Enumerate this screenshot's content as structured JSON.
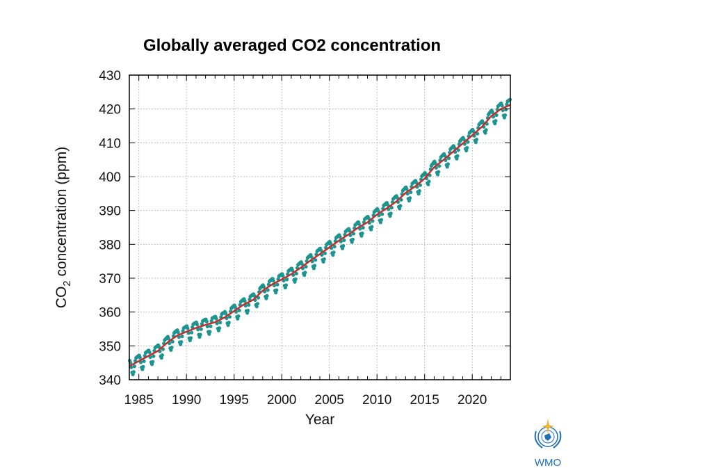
{
  "chart_data": {
    "type": "line",
    "title": "Globally averaged CO2 concentration",
    "xlabel": "Year",
    "ylabel_prefix": "CO",
    "ylabel_subscript": "2",
    "ylabel_suffix": " concentration (ppm)",
    "xlim": [
      1984,
      2024
    ],
    "ylim": [
      340,
      430
    ],
    "xticks": [
      1985,
      1990,
      1995,
      2000,
      2005,
      2010,
      2015,
      2020
    ],
    "yticks": [
      340,
      350,
      360,
      370,
      380,
      390,
      400,
      410,
      420,
      430
    ],
    "grid": true,
    "legend": "none",
    "series": [
      {
        "kind": "trend-line",
        "color": "#c0302e",
        "x": [
          1984,
          1985,
          1986,
          1987,
          1988,
          1989,
          1990,
          1991,
          1992,
          1993,
          1994,
          1995,
          1996,
          1997,
          1998,
          1999,
          2000,
          2001,
          2002,
          2003,
          2004,
          2005,
          2006,
          2007,
          2008,
          2009,
          2010,
          2011,
          2012,
          2013,
          2014,
          2015,
          2016,
          2017,
          2018,
          2019,
          2020,
          2021,
          2022,
          2023,
          2024
        ],
        "y": [
          344.0,
          345.5,
          347.0,
          348.5,
          351.0,
          353.0,
          354.2,
          355.3,
          356.2,
          357.0,
          358.4,
          360.3,
          362.2,
          363.6,
          366.3,
          368.2,
          369.6,
          371.2,
          373.1,
          375.2,
          377.1,
          379.1,
          381.1,
          382.9,
          384.9,
          386.5,
          388.8,
          390.6,
          392.6,
          395.2,
          397.1,
          399.4,
          402.8,
          405.0,
          407.4,
          409.8,
          412.2,
          414.7,
          417.9,
          420.0,
          421.2
        ]
      },
      {
        "kind": "monthly-points",
        "color": "#1e9490",
        "seasonal_amplitude_ppm": 3.0,
        "note_on_values": "monthly means oscillate seasonally around the trend line"
      }
    ]
  },
  "logo": {
    "text": "WMO",
    "color": "#1f6fb5"
  }
}
